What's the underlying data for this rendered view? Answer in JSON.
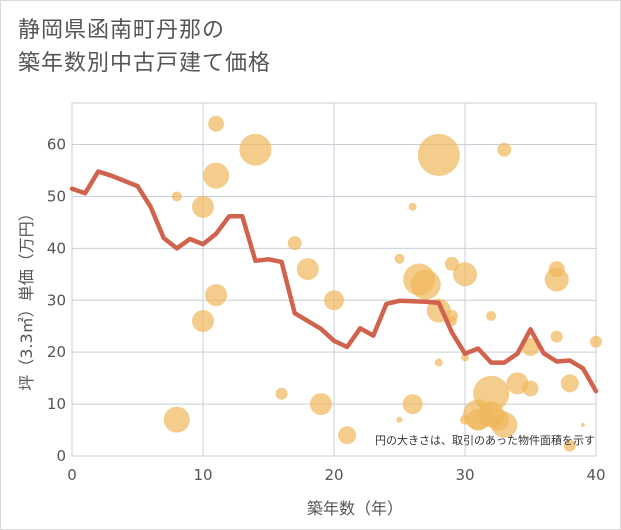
{
  "chart_data": {
    "type": "scatter+line",
    "title": [
      "静岡県函南町丹那の",
      "築年数別中古戸建て価格"
    ],
    "xlabel": "築年数（年）",
    "ylabel": "坪（3.3㎡）単価（万円）",
    "xlim": [
      0,
      40
    ],
    "ylim": [
      0,
      68
    ],
    "xticks": [
      0,
      10,
      20,
      30,
      40
    ],
    "yticks": [
      0,
      10,
      20,
      30,
      40,
      50,
      60
    ],
    "note": "円の大きさは、取引のあった物件面積を示す",
    "colors": {
      "bubble": "#f0b75a",
      "line": "#d0624e",
      "grid": "#c9cfd8"
    },
    "series": [
      {
        "name": "bubbles",
        "type": "scatter",
        "points": [
          {
            "x": 8,
            "y": 50,
            "s": 5
          },
          {
            "x": 8,
            "y": 7,
            "s": 13
          },
          {
            "x": 10,
            "y": 48,
            "s": 11
          },
          {
            "x": 10,
            "y": 26,
            "s": 11
          },
          {
            "x": 11,
            "y": 64,
            "s": 8
          },
          {
            "x": 11,
            "y": 54,
            "s": 13
          },
          {
            "x": 11,
            "y": 31,
            "s": 11
          },
          {
            "x": 14,
            "y": 59,
            "s": 16
          },
          {
            "x": 16,
            "y": 12,
            "s": 6
          },
          {
            "x": 17,
            "y": 41,
            "s": 7
          },
          {
            "x": 18,
            "y": 36,
            "s": 11
          },
          {
            "x": 19,
            "y": 10,
            "s": 11
          },
          {
            "x": 20,
            "y": 30,
            "s": 10
          },
          {
            "x": 21,
            "y": 4,
            "s": 9
          },
          {
            "x": 25,
            "y": 38,
            "s": 5
          },
          {
            "x": 25,
            "y": 7,
            "s": 3
          },
          {
            "x": 26,
            "y": 48,
            "s": 4
          },
          {
            "x": 26,
            "y": 10,
            "s": 10
          },
          {
            "x": 26.5,
            "y": 34,
            "s": 16
          },
          {
            "x": 27,
            "y": 33,
            "s": 15
          },
          {
            "x": 28,
            "y": 58,
            "s": 21
          },
          {
            "x": 28,
            "y": 28,
            "s": 12
          },
          {
            "x": 28,
            "y": 18,
            "s": 4
          },
          {
            "x": 29,
            "y": 37,
            "s": 7
          },
          {
            "x": 29,
            "y": 27,
            "s": 6
          },
          {
            "x": 29,
            "y": 26,
            "s": 5
          },
          {
            "x": 30,
            "y": 35,
            "s": 12
          },
          {
            "x": 30,
            "y": 19,
            "s": 4
          },
          {
            "x": 30,
            "y": 7,
            "s": 5
          },
          {
            "x": 31,
            "y": 8,
            "s": 15
          },
          {
            "x": 31,
            "y": 7,
            "s": 11
          },
          {
            "x": 32,
            "y": 27,
            "s": 5
          },
          {
            "x": 32,
            "y": 12,
            "s": 18
          },
          {
            "x": 32,
            "y": 8,
            "s": 13
          },
          {
            "x": 32.5,
            "y": 7,
            "s": 11
          },
          {
            "x": 33,
            "y": 59,
            "s": 7
          },
          {
            "x": 33,
            "y": 6,
            "s": 13
          },
          {
            "x": 34,
            "y": 14,
            "s": 11
          },
          {
            "x": 35,
            "y": 21,
            "s": 9
          },
          {
            "x": 35,
            "y": 13,
            "s": 8
          },
          {
            "x": 37,
            "y": 36,
            "s": 8
          },
          {
            "x": 37,
            "y": 34,
            "s": 12
          },
          {
            "x": 37,
            "y": 23,
            "s": 6
          },
          {
            "x": 38,
            "y": 14,
            "s": 9
          },
          {
            "x": 38,
            "y": 2,
            "s": 6
          },
          {
            "x": 39,
            "y": 6,
            "s": 2
          },
          {
            "x": 40,
            "y": 22,
            "s": 6
          }
        ]
      },
      {
        "name": "average",
        "type": "line",
        "x": [
          0,
          1,
          2,
          3,
          4,
          5,
          6,
          7,
          8,
          9,
          10,
          11,
          12,
          13,
          14,
          15,
          16,
          17,
          18,
          19,
          20,
          21,
          22,
          23,
          24,
          25,
          26,
          27,
          28,
          29,
          30,
          31,
          32,
          33,
          34,
          35,
          36,
          37,
          38,
          39,
          40
        ],
        "y": [
          51.5,
          50.6,
          54.8,
          54,
          53,
          52,
          48,
          42,
          40,
          41.8,
          40.8,
          42.8,
          46.2,
          46.2,
          37.6,
          37.9,
          37.4,
          27.5,
          26,
          24.5,
          22.2,
          21,
          24.6,
          23.2,
          29.3,
          29.9,
          29.8,
          29.7,
          29.5,
          23.8,
          19.7,
          20.7,
          18,
          18,
          19.7,
          24.4,
          19.8,
          18.2,
          18.4,
          16.9,
          12.5
        ]
      }
    ]
  }
}
